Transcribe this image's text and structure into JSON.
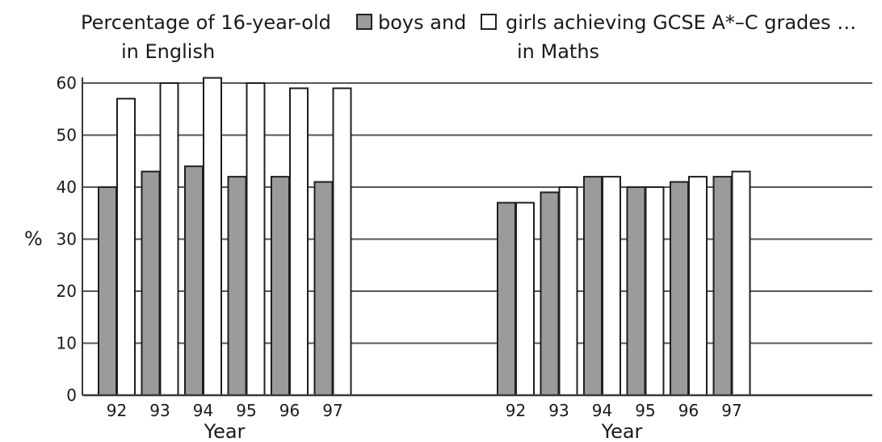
{
  "chart_data": {
    "type": "bar",
    "title": {
      "line1_part1": "Percentage of 16-year-old",
      "line1_part2": "boys and",
      "line1_part3": "girls achieving GCSE A*–C grades …",
      "subtitle_left": "in English",
      "subtitle_right": "in Maths"
    },
    "ylabel": "%",
    "ylim": [
      0,
      60
    ],
    "yticks": [
      "0",
      "10",
      "20",
      "30",
      "40",
      "50",
      "60"
    ],
    "grid": true,
    "legend_placement": "inline-in-title",
    "series": [
      {
        "name": "boys",
        "color": "#9b9b9b"
      },
      {
        "name": "girls",
        "color": "#ffffff"
      }
    ],
    "panels": [
      {
        "subject": "English",
        "xlabel": "Year",
        "categories": [
          "92",
          "93",
          "94",
          "95",
          "96",
          "97"
        ],
        "boys": [
          40,
          43,
          44,
          42,
          42,
          41
        ],
        "girls": [
          57,
          60,
          61,
          60,
          59,
          59
        ]
      },
      {
        "subject": "Maths",
        "xlabel": "Year",
        "categories": [
          "92",
          "93",
          "94",
          "95",
          "96",
          "97"
        ],
        "boys": [
          37,
          39,
          42,
          40,
          41,
          42
        ],
        "girls": [
          37,
          40,
          42,
          40,
          42,
          43
        ]
      }
    ]
  }
}
